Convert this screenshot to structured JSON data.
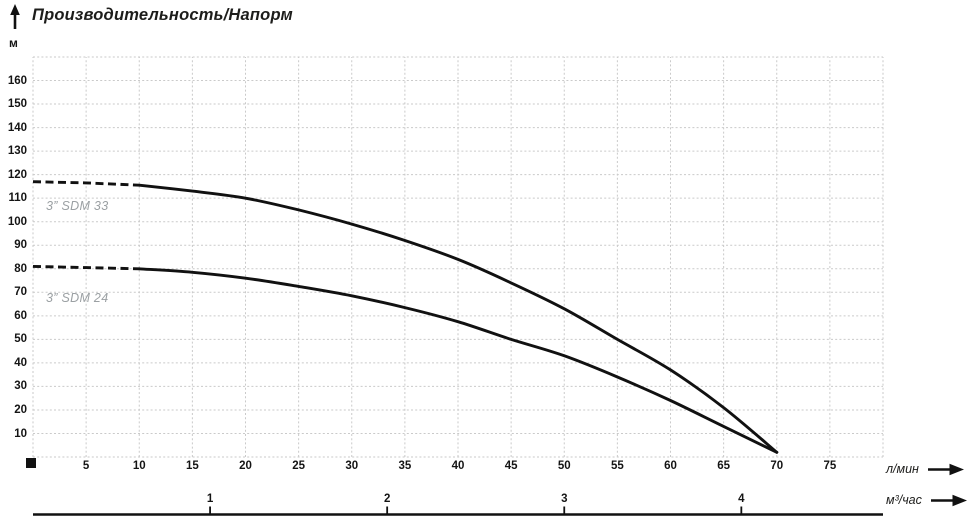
{
  "title": "Производительность/Напорм",
  "y_axis": {
    "unit": "м",
    "ticks": [
      10,
      20,
      30,
      40,
      50,
      60,
      70,
      80,
      90,
      100,
      110,
      120,
      130,
      140,
      150,
      160
    ]
  },
  "x_axis_lmin": {
    "unit": "л/мин",
    "ticks": [
      5,
      10,
      15,
      20,
      25,
      30,
      35,
      40,
      45,
      50,
      55,
      60,
      65,
      70,
      75
    ]
  },
  "x_axis_m3h": {
    "unit": "м³/час",
    "ticks": [
      1,
      2,
      3,
      4
    ]
  },
  "series_labels": {
    "sdm33": "3” SDM 33",
    "sdm24": "3” SDM 24"
  },
  "colors": {
    "curve": "#111111",
    "grid": "#cacaca",
    "text": "#1d1d1b",
    "series_label": "#9ba0a3",
    "axis_line": "#111111"
  },
  "chart_data": {
    "type": "line",
    "title": "Производительность/Напорм",
    "ylabel": "м",
    "xlabel_primary": "л/мин",
    "xlabel_secondary": "м³/час",
    "xlim": [
      0,
      80
    ],
    "ylim": [
      0,
      170
    ],
    "grid": true,
    "grid_step_x_lmin": 5,
    "grid_step_y_m": 10,
    "m3h_tick_positions_in_lmin": 16.6667,
    "series": [
      {
        "name": "3” SDM 33",
        "dashed_until_lmin": 10,
        "points": [
          [
            0,
            117
          ],
          [
            5,
            116.5
          ],
          [
            10,
            115.5
          ],
          [
            15,
            113
          ],
          [
            20,
            110
          ],
          [
            25,
            105
          ],
          [
            30,
            99
          ],
          [
            35,
            92
          ],
          [
            40,
            84
          ],
          [
            45,
            74
          ],
          [
            50,
            63
          ],
          [
            55,
            50
          ],
          [
            60,
            37
          ],
          [
            65,
            21
          ],
          [
            70,
            2
          ]
        ]
      },
      {
        "name": "3” SDM 24",
        "dashed_until_lmin": 10,
        "points": [
          [
            0,
            81
          ],
          [
            5,
            80.5
          ],
          [
            10,
            80
          ],
          [
            15,
            78.5
          ],
          [
            20,
            76
          ],
          [
            25,
            72.5
          ],
          [
            30,
            68.5
          ],
          [
            35,
            63.5
          ],
          [
            40,
            57.5
          ],
          [
            45,
            50
          ],
          [
            50,
            43
          ],
          [
            55,
            34
          ],
          [
            60,
            24
          ],
          [
            65,
            13
          ],
          [
            70,
            2
          ]
        ]
      }
    ]
  }
}
